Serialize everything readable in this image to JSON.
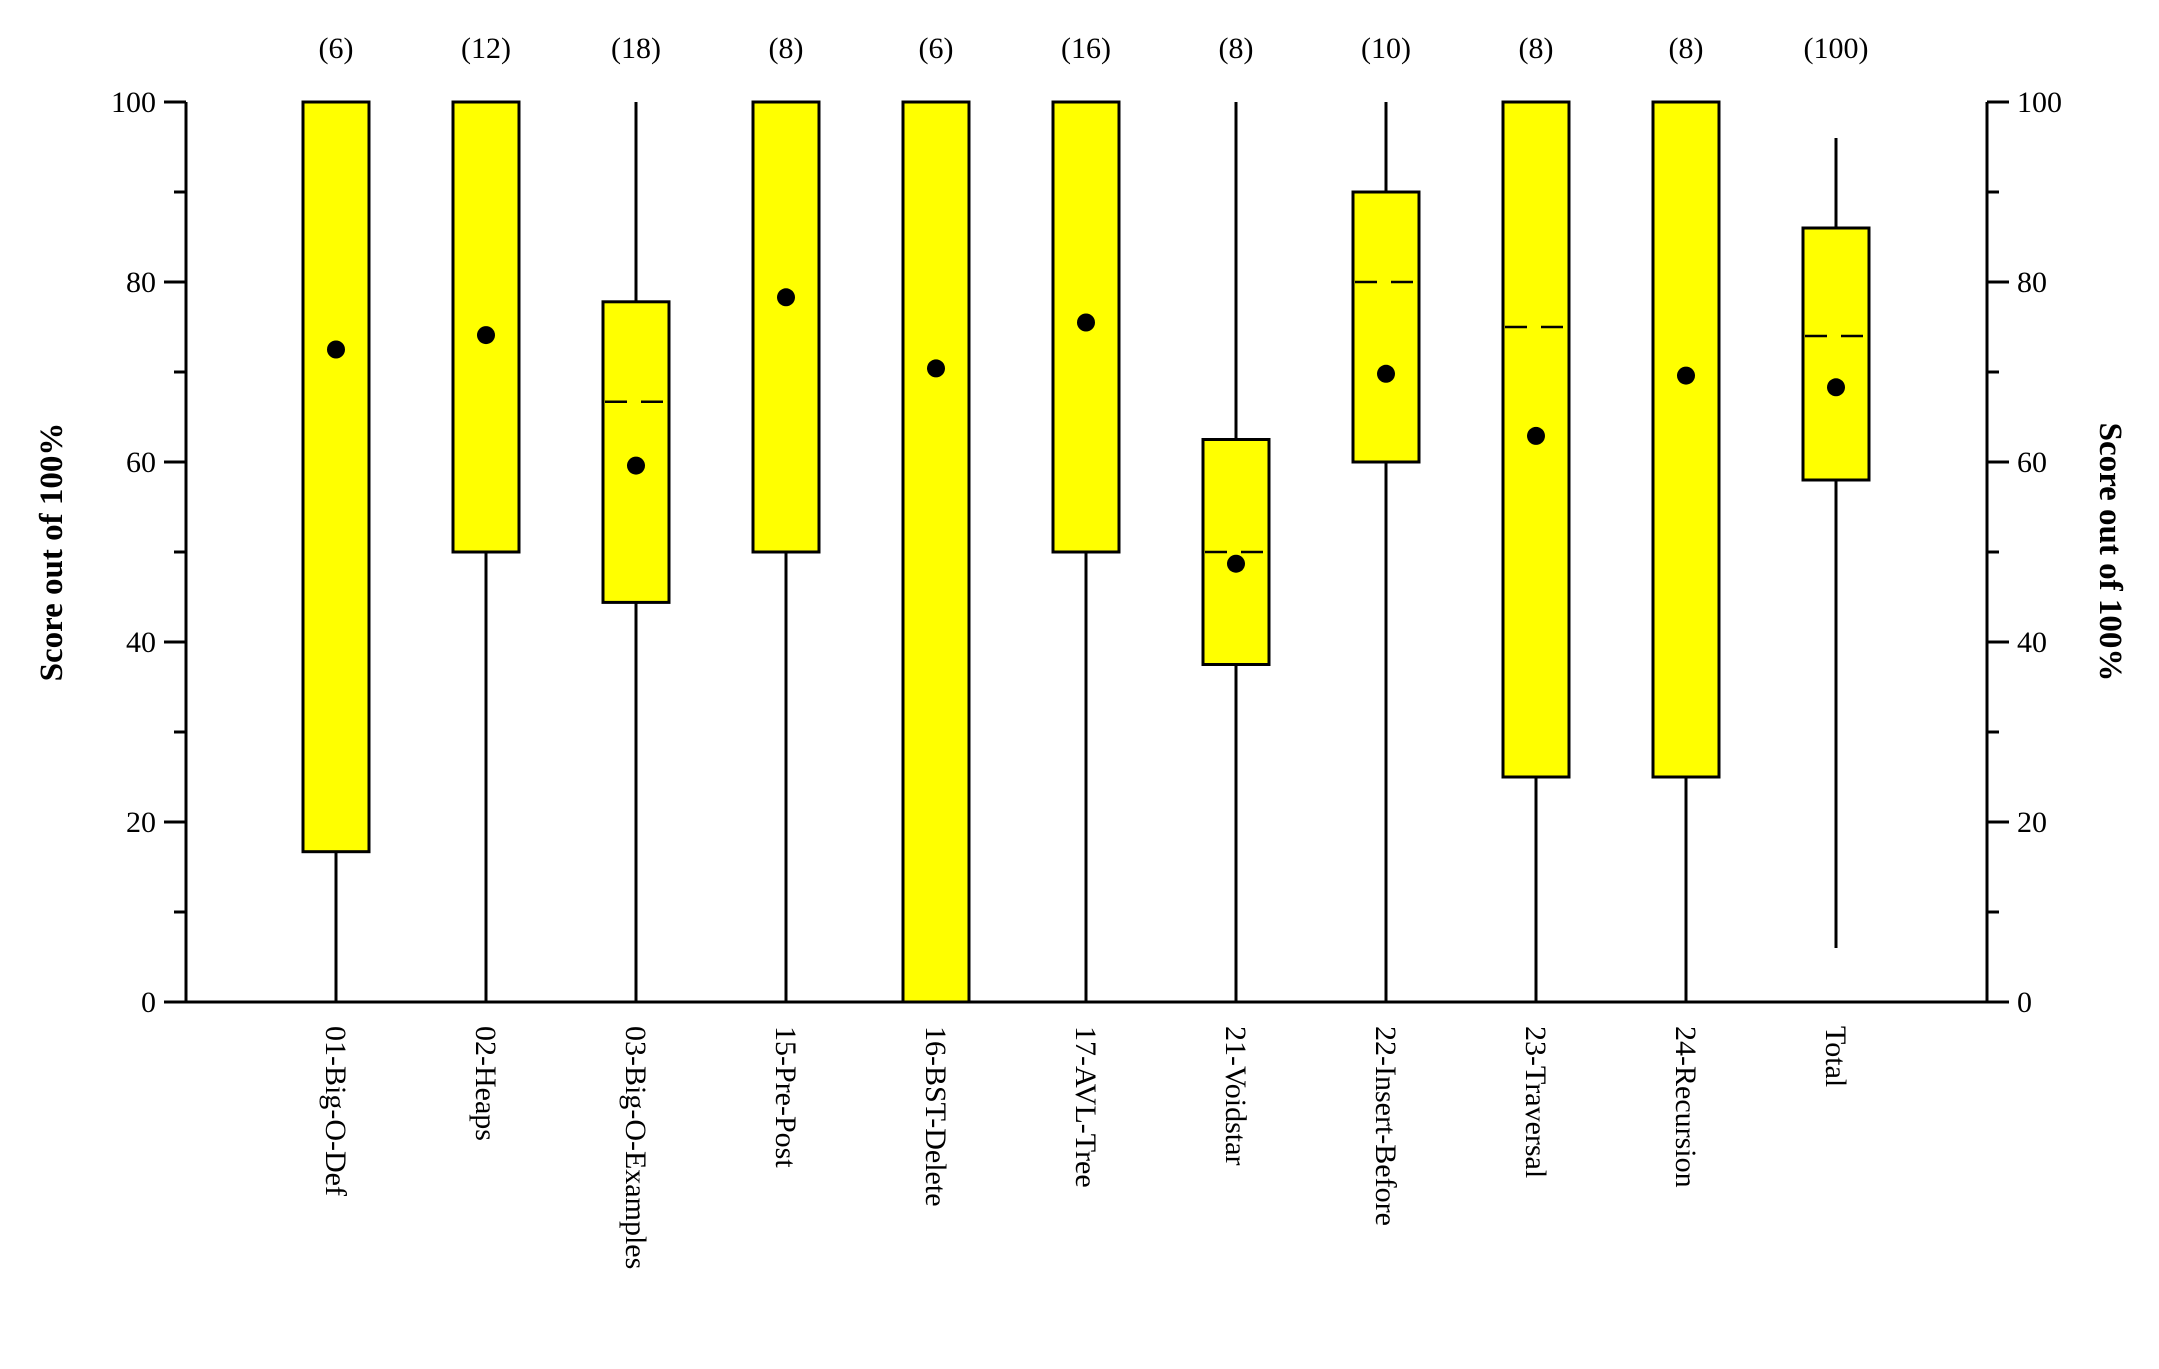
{
  "chart_data": {
    "type": "boxplot",
    "ylabel": "Score out of 100%",
    "ylabel_right": "Score out of 100%",
    "ylim": [
      0,
      100
    ],
    "yticks": [
      0,
      20,
      40,
      60,
      80,
      100
    ],
    "yticks_minor": [
      10,
      30,
      50,
      70,
      90
    ],
    "box_color": "#ffff00",
    "categories": [
      "01-Big-O-Def",
      "02-Heaps",
      "03-Big-O-Examples",
      "15-Pre-Post",
      "16-BST-Delete",
      "17-AVL-Tree",
      "21-Voidstar",
      "22-Insert-Before",
      "23-Traversal",
      "24-Recursion",
      "Total"
    ],
    "counts": [
      "(6)",
      "(12)",
      "(18)",
      "(8)",
      "(6)",
      "(16)",
      "(8)",
      "(10)",
      "(8)",
      "(8)",
      "(100)"
    ],
    "boxes": [
      {
        "min": 0,
        "q1": 16.7,
        "median": 100,
        "q3": 100,
        "max": 100,
        "mean": 72.5
      },
      {
        "min": 0,
        "q1": 50,
        "median": 100,
        "q3": 100,
        "max": 100,
        "mean": 74.1
      },
      {
        "min": 0,
        "q1": 44.4,
        "median": 66.7,
        "q3": 77.8,
        "max": 100,
        "mean": 59.6
      },
      {
        "min": 0,
        "q1": 50,
        "median": 100,
        "q3": 100,
        "max": 100,
        "mean": 78.3
      },
      {
        "min": 0,
        "q1": 0,
        "median": 100,
        "q3": 100,
        "max": 100,
        "mean": 70.4
      },
      {
        "min": 0,
        "q1": 50,
        "median": 100,
        "q3": 100,
        "max": 100,
        "mean": 75.5
      },
      {
        "min": 0,
        "q1": 37.5,
        "median": 50,
        "q3": 62.5,
        "max": 100,
        "mean": 48.7
      },
      {
        "min": 0,
        "q1": 60,
        "median": 80,
        "q3": 90,
        "max": 100,
        "mean": 69.8
      },
      {
        "min": 0,
        "q1": 25,
        "median": 75,
        "q3": 100,
        "max": 100,
        "mean": 62.9
      },
      {
        "min": 0,
        "q1": 25,
        "median": 100,
        "q3": 100,
        "max": 100,
        "mean": 69.6
      },
      {
        "min": 6,
        "q1": 58,
        "median": 74,
        "q3": 86,
        "max": 96,
        "mean": 68.3
      }
    ]
  }
}
